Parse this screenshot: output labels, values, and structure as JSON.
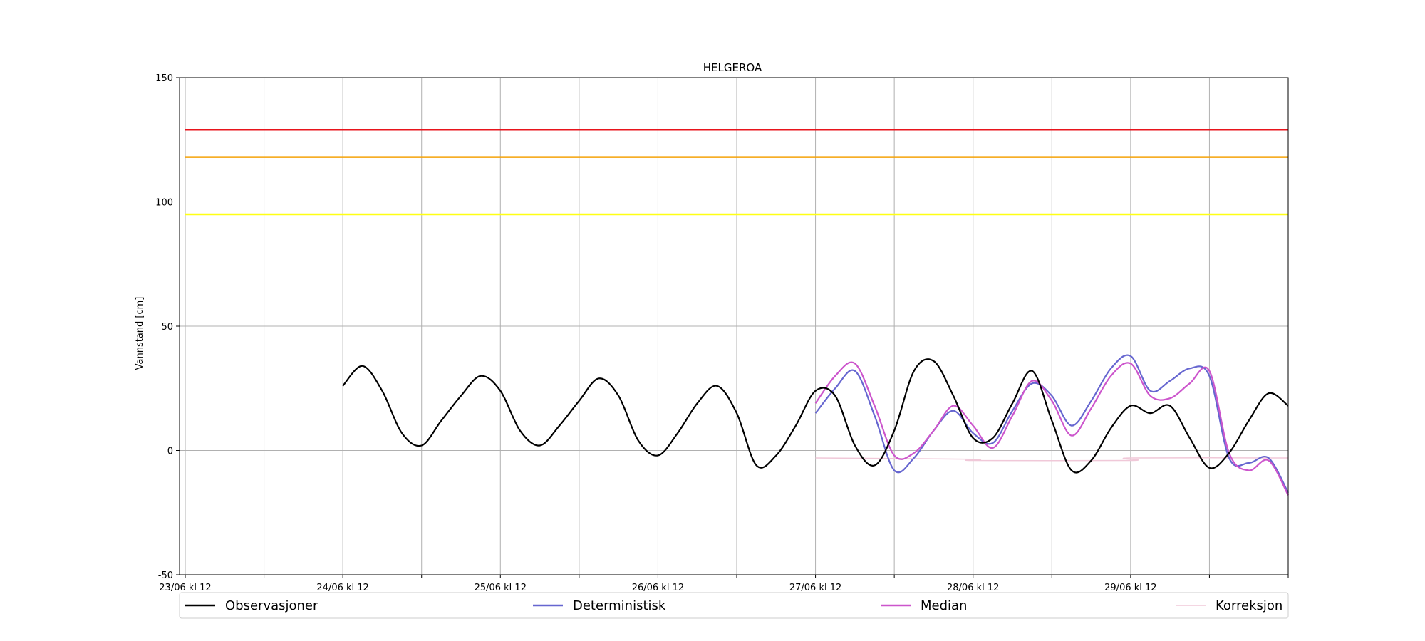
{
  "chart_data": {
    "type": "line",
    "title": "HELGEROA",
    "xlabel": "",
    "ylabel": "Vannstand [cm]",
    "ylim": [
      -50,
      150
    ],
    "xlim": [
      "2023-06-23 12:00",
      "2023-06-30 12:00"
    ],
    "grid": true,
    "legend_position": "bottom",
    "x_ticks": [
      "23/06 kl 12",
      "24/06 kl 12",
      "25/06 kl 12",
      "26/06 kl 12",
      "27/06 kl 12",
      "28/06 kl 12",
      "29/06 kl 12"
    ],
    "y_ticks": [
      -50,
      0,
      50,
      100,
      150
    ],
    "thresholds": [
      {
        "value": 129,
        "color": "#e8141c"
      },
      {
        "value": 118,
        "color": "#f5a30a"
      },
      {
        "value": 95,
        "color": "#ffff14"
      }
    ],
    "series": [
      {
        "name": "Observasjoner",
        "color": "#000000",
        "x": [
          "2023-06-24 12:00",
          "2023-06-24 15:00",
          "2023-06-24 18:00",
          "2023-06-24 21:00",
          "2023-06-25 00:00",
          "2023-06-25 03:00",
          "2023-06-25 06:00",
          "2023-06-25 09:00",
          "2023-06-25 12:00",
          "2023-06-25 15:00",
          "2023-06-25 18:00",
          "2023-06-25 21:00",
          "2023-06-26 00:00",
          "2023-06-26 03:00",
          "2023-06-26 06:00",
          "2023-06-26 09:00",
          "2023-06-26 12:00",
          "2023-06-26 15:00",
          "2023-06-26 18:00",
          "2023-06-26 21:00",
          "2023-06-27 00:00",
          "2023-06-27 03:00",
          "2023-06-27 06:00",
          "2023-06-27 09:00",
          "2023-06-27 12:00",
          "2023-06-27 15:00",
          "2023-06-27 18:00",
          "2023-06-27 21:00",
          "2023-06-28 00:00",
          "2023-06-28 03:00",
          "2023-06-28 06:00",
          "2023-06-28 09:00",
          "2023-06-28 12:00",
          "2023-06-28 15:00",
          "2023-06-28 18:00",
          "2023-06-28 21:00",
          "2023-06-29 00:00",
          "2023-06-29 03:00",
          "2023-06-29 06:00",
          "2023-06-29 09:00",
          "2023-06-29 12:00",
          "2023-06-29 15:00",
          "2023-06-29 18:00",
          "2023-06-29 21:00",
          "2023-06-30 00:00",
          "2023-06-30 03:00",
          "2023-06-30 06:00",
          "2023-06-30 09:00",
          "2023-06-30 12:00"
        ],
        "values": [
          26,
          34,
          24,
          7,
          2,
          12,
          22,
          30,
          24,
          8,
          2,
          10,
          20,
          29,
          22,
          4,
          -2,
          7,
          19,
          26,
          15,
          -6,
          -2,
          10,
          24,
          22,
          2,
          -6,
          8,
          32,
          36,
          22,
          5,
          5,
          19,
          32,
          12,
          -8,
          -4,
          9,
          18,
          15,
          18,
          5,
          -7,
          -1,
          12,
          23,
          18
        ]
      },
      {
        "name": "Deterministisk",
        "color": "#6666d0",
        "x": [
          "2023-06-27 12:00",
          "2023-06-27 15:00",
          "2023-06-27 18:00",
          "2023-06-27 21:00",
          "2023-06-28 00:00",
          "2023-06-28 03:00",
          "2023-06-28 06:00",
          "2023-06-28 09:00",
          "2023-06-28 12:00",
          "2023-06-28 15:00",
          "2023-06-28 18:00",
          "2023-06-28 21:00",
          "2023-06-29 00:00",
          "2023-06-29 03:00",
          "2023-06-29 06:00",
          "2023-06-29 09:00",
          "2023-06-29 12:00",
          "2023-06-29 15:00",
          "2023-06-29 18:00",
          "2023-06-29 21:00",
          "2023-06-30 00:00",
          "2023-06-30 03:00",
          "2023-06-30 06:00",
          "2023-06-30 09:00",
          "2023-06-30 12:00"
        ],
        "values": [
          15,
          25,
          32,
          14,
          -8,
          -3,
          8,
          16,
          7,
          3,
          16,
          27,
          22,
          10,
          20,
          33,
          38,
          24,
          28,
          33,
          30,
          -3,
          -5,
          -3,
          -17
        ]
      },
      {
        "name": "Median",
        "color": "#cc55cc",
        "x": [
          "2023-06-27 12:00",
          "2023-06-27 15:00",
          "2023-06-27 18:00",
          "2023-06-27 21:00",
          "2023-06-28 00:00",
          "2023-06-28 03:00",
          "2023-06-28 06:00",
          "2023-06-28 09:00",
          "2023-06-28 12:00",
          "2023-06-28 15:00",
          "2023-06-28 18:00",
          "2023-06-28 21:00",
          "2023-06-29 00:00",
          "2023-06-29 03:00",
          "2023-06-29 06:00",
          "2023-06-29 09:00",
          "2023-06-29 12:00",
          "2023-06-29 15:00",
          "2023-06-29 18:00",
          "2023-06-29 21:00",
          "2023-06-30 00:00",
          "2023-06-30 03:00",
          "2023-06-30 06:00",
          "2023-06-30 09:00",
          "2023-06-30 12:00"
        ],
        "values": [
          19,
          30,
          35,
          18,
          -2,
          -1,
          8,
          18,
          10,
          1,
          14,
          28,
          20,
          6,
          17,
          30,
          35,
          22,
          21,
          27,
          32,
          -1,
          -8,
          -4,
          -18
        ]
      },
      {
        "name": "Korreksjon",
        "color": "#f0c8d8",
        "x": [
          "2023-06-27 12:00",
          "2023-06-28 12:00",
          "2023-06-28 12:01",
          "2023-06-29 12:00",
          "2023-06-29 12:01",
          "2023-06-30 12:00"
        ],
        "values": [
          -3,
          -3.5,
          -4,
          -4,
          -3,
          -3
        ]
      }
    ]
  }
}
